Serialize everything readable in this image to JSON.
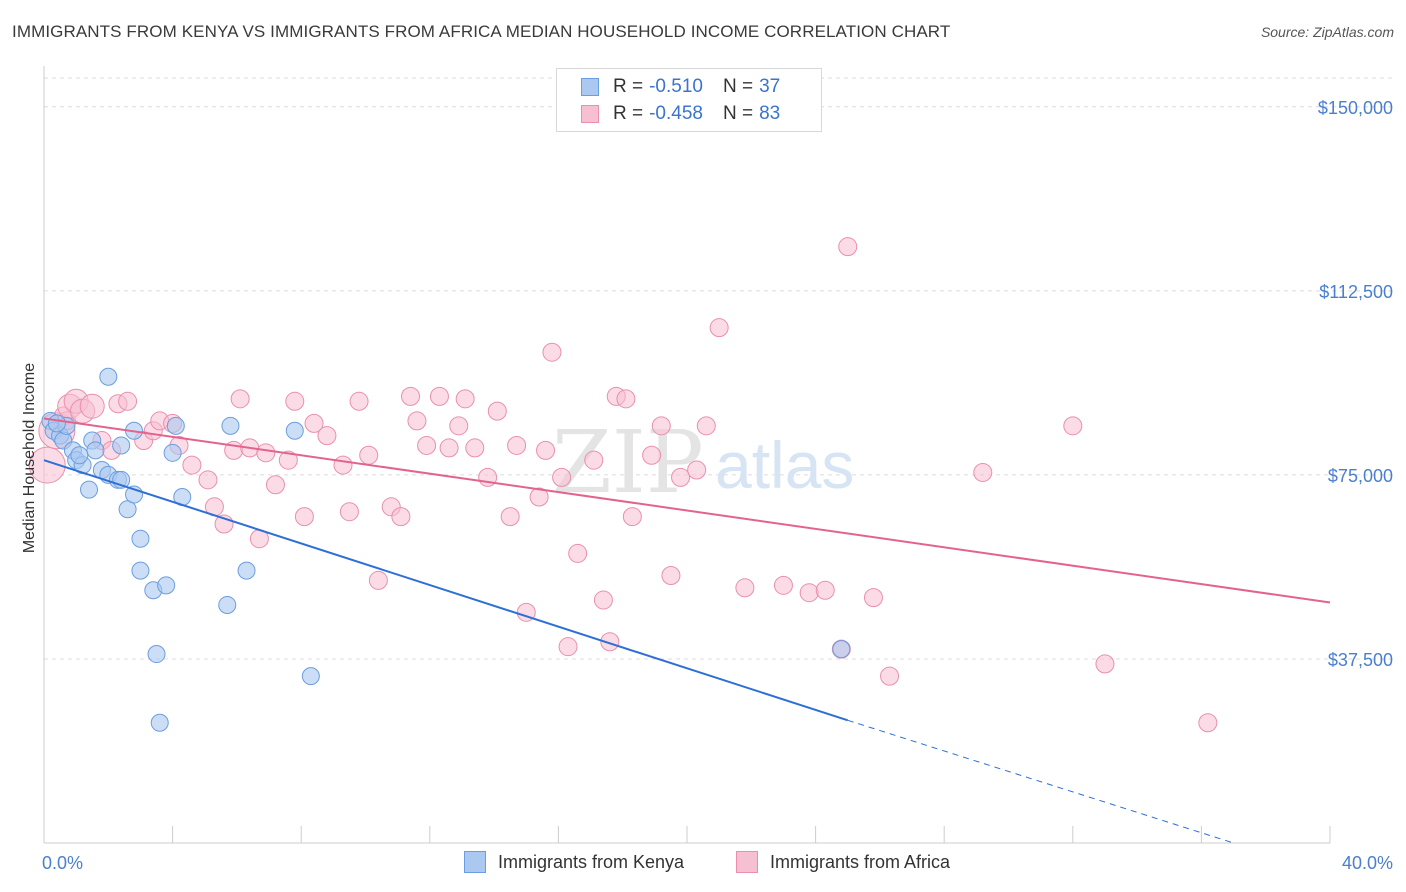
{
  "title": "IMMIGRANTS FROM KENYA VS IMMIGRANTS FROM AFRICA MEDIAN HOUSEHOLD INCOME CORRELATION CHART",
  "source": "Source: ZipAtlas.com",
  "watermark": {
    "zip": "ZIP",
    "atlas": "atlas"
  },
  "legend": {
    "rows": [
      {
        "r_label": "R =",
        "r_value": "-0.510",
        "n_label": "N =",
        "n_value": "37"
      },
      {
        "r_label": "R =",
        "r_value": "-0.458",
        "n_label": "N =",
        "n_value": "83"
      }
    ]
  },
  "bottom_legend": {
    "kenya": "Immigrants from Kenya",
    "africa": "Immigrants from Africa"
  },
  "colors": {
    "kenya_fill": "#aac8f0",
    "kenya_stroke": "#6a9ee0",
    "kenya_line": "#2e6fd6",
    "africa_fill": "#f7c0d2",
    "africa_stroke": "#ea8fae",
    "africa_line": "#e2648e",
    "tick_text": "#4a7fd0"
  },
  "chart_data": {
    "type": "scatter",
    "title": "IMMIGRANTS FROM KENYA VS IMMIGRANTS FROM AFRICA MEDIAN HOUSEHOLD INCOME CORRELATION CHART",
    "xlabel": "",
    "ylabel": "Median Household Income",
    "xlim": [
      0,
      40
    ],
    "ylim": [
      0,
      157500
    ],
    "x_tick_labels": [
      "0.0%",
      "40.0%"
    ],
    "y_ticks": [
      37500,
      75000,
      112500,
      150000
    ],
    "y_tick_labels": [
      "$37,500",
      "$75,000",
      "$112,500",
      "$150,000"
    ],
    "grid": true,
    "legend_position": "top-center",
    "series": [
      {
        "name": "Immigrants from Kenya",
        "R": -0.51,
        "N": 37,
        "trend": {
          "x": [
            0,
            25
          ],
          "y": [
            78000,
            25000
          ],
          "dashed_to": [
            37,
            0
          ]
        },
        "points": [
          [
            0.2,
            86000
          ],
          [
            0.3,
            84000
          ],
          [
            0.5,
            83000
          ],
          [
            0.6,
            82000
          ],
          [
            0.7,
            85000
          ],
          [
            0.9,
            80000
          ],
          [
            1.0,
            78000
          ],
          [
            1.2,
            77000
          ],
          [
            1.4,
            72000
          ],
          [
            1.5,
            82000
          ],
          [
            1.6,
            80000
          ],
          [
            1.8,
            76000
          ],
          [
            2.0,
            75000
          ],
          [
            2.0,
            95000
          ],
          [
            2.3,
            74000
          ],
          [
            2.4,
            81000
          ],
          [
            2.4,
            74000
          ],
          [
            2.6,
            68000
          ],
          [
            2.8,
            84000
          ],
          [
            2.8,
            71000
          ],
          [
            3.0,
            62000
          ],
          [
            3.0,
            55500
          ],
          [
            3.4,
            51500
          ],
          [
            3.5,
            38500
          ],
          [
            3.6,
            24500
          ],
          [
            3.8,
            52500
          ],
          [
            4.0,
            79500
          ],
          [
            4.1,
            85000
          ],
          [
            4.3,
            70500
          ],
          [
            5.7,
            48500
          ],
          [
            5.8,
            85000
          ],
          [
            6.3,
            55500
          ],
          [
            7.8,
            84000
          ],
          [
            8.3,
            34000
          ],
          [
            24.8,
            39500
          ],
          [
            0.4,
            85500
          ],
          [
            1.1,
            79000
          ]
        ]
      },
      {
        "name": "Immigrants from Africa",
        "R": -0.458,
        "N": 83,
        "trend": {
          "x": [
            0,
            40
          ],
          "y": [
            86500,
            49000
          ]
        },
        "points": [
          [
            0.1,
            77000
          ],
          [
            0.4,
            84000
          ],
          [
            0.6,
            87000
          ],
          [
            0.7,
            86000
          ],
          [
            0.8,
            89000
          ],
          [
            1.0,
            90000
          ],
          [
            1.2,
            88000
          ],
          [
            1.5,
            89000
          ],
          [
            1.8,
            82000
          ],
          [
            2.1,
            80000
          ],
          [
            2.3,
            89500
          ],
          [
            2.6,
            90000
          ],
          [
            3.1,
            82000
          ],
          [
            3.4,
            84000
          ],
          [
            3.6,
            86000
          ],
          [
            4.0,
            85500
          ],
          [
            4.2,
            81000
          ],
          [
            4.6,
            77000
          ],
          [
            5.1,
            74000
          ],
          [
            5.3,
            68500
          ],
          [
            5.6,
            65000
          ],
          [
            5.9,
            80000
          ],
          [
            6.1,
            90500
          ],
          [
            6.4,
            80500
          ],
          [
            6.7,
            62000
          ],
          [
            6.9,
            79500
          ],
          [
            7.2,
            73000
          ],
          [
            7.6,
            78000
          ],
          [
            7.8,
            90000
          ],
          [
            8.1,
            66500
          ],
          [
            8.4,
            85500
          ],
          [
            8.8,
            83000
          ],
          [
            9.3,
            77000
          ],
          [
            9.5,
            67500
          ],
          [
            9.8,
            90000
          ],
          [
            10.1,
            79000
          ],
          [
            10.4,
            53500
          ],
          [
            10.8,
            68500
          ],
          [
            11.1,
            66500
          ],
          [
            11.4,
            91000
          ],
          [
            11.6,
            86000
          ],
          [
            11.9,
            81000
          ],
          [
            12.3,
            91000
          ],
          [
            12.6,
            80500
          ],
          [
            12.9,
            85000
          ],
          [
            13.1,
            90500
          ],
          [
            13.4,
            80500
          ],
          [
            13.8,
            74500
          ],
          [
            14.1,
            88000
          ],
          [
            14.5,
            66500
          ],
          [
            14.7,
            81000
          ],
          [
            15.0,
            47000
          ],
          [
            15.4,
            70500
          ],
          [
            15.6,
            80000
          ],
          [
            15.8,
            100000
          ],
          [
            16.1,
            74500
          ],
          [
            16.3,
            40000
          ],
          [
            16.6,
            59000
          ],
          [
            17.1,
            78000
          ],
          [
            17.4,
            49500
          ],
          [
            17.6,
            41000
          ],
          [
            17.8,
            91000
          ],
          [
            18.1,
            90500
          ],
          [
            18.3,
            66500
          ],
          [
            18.9,
            79000
          ],
          [
            19.2,
            85000
          ],
          [
            19.5,
            54500
          ],
          [
            19.8,
            74500
          ],
          [
            20.3,
            76000
          ],
          [
            20.6,
            85000
          ],
          [
            21.0,
            105000
          ],
          [
            21.8,
            52000
          ],
          [
            23.0,
            52500
          ],
          [
            23.8,
            51000
          ],
          [
            24.3,
            51500
          ],
          [
            24.8,
            39500
          ],
          [
            25.0,
            121500
          ],
          [
            25.8,
            50000
          ],
          [
            26.3,
            34000
          ],
          [
            29.2,
            75500
          ],
          [
            32.0,
            85000
          ],
          [
            33.0,
            36500
          ],
          [
            36.2,
            24500
          ]
        ]
      }
    ]
  }
}
